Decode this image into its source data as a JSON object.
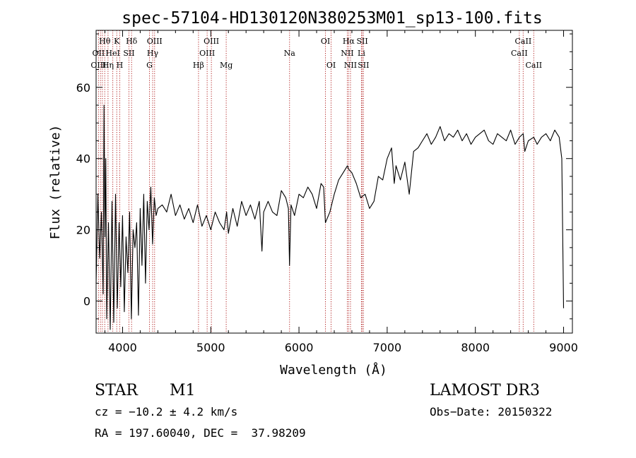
{
  "chart_data": {
    "type": "line",
    "title": "spec-57104-HD130120N380253M01_sp13-100.fits",
    "xlabel": "Wavelength (Å)",
    "ylabel": "Flux (relative)",
    "xlim": [
      3700,
      9100
    ],
    "ylim": [
      -9,
      76
    ],
    "xticks": [
      4000,
      5000,
      6000,
      7000,
      8000,
      9000
    ],
    "yticks": [
      0,
      20,
      40,
      60
    ],
    "series": [
      {
        "name": "flux",
        "x": [
          3700,
          3720,
          3740,
          3760,
          3780,
          3790,
          3800,
          3810,
          3820,
          3840,
          3860,
          3880,
          3900,
          3920,
          3940,
          3960,
          3980,
          4000,
          4020,
          4040,
          4060,
          4080,
          4100,
          4120,
          4140,
          4160,
          4180,
          4200,
          4220,
          4240,
          4260,
          4280,
          4300,
          4320,
          4340,
          4360,
          4380,
          4400,
          4450,
          4500,
          4550,
          4600,
          4650,
          4700,
          4750,
          4800,
          4850,
          4900,
          4950,
          5000,
          5050,
          5100,
          5150,
          5180,
          5200,
          5250,
          5300,
          5350,
          5400,
          5450,
          5500,
          5550,
          5580,
          5600,
          5650,
          5700,
          5750,
          5800,
          5850,
          5880,
          5893,
          5910,
          5950,
          6000,
          6050,
          6100,
          6150,
          6200,
          6250,
          6280,
          6300,
          6350,
          6400,
          6450,
          6500,
          6550,
          6563,
          6600,
          6650,
          6700,
          6750,
          6800,
          6850,
          6900,
          6950,
          7000,
          7050,
          7080,
          7100,
          7150,
          7200,
          7250,
          7300,
          7350,
          7400,
          7450,
          7500,
          7550,
          7600,
          7650,
          7700,
          7750,
          7800,
          7850,
          7900,
          7950,
          8000,
          8050,
          8100,
          8150,
          8200,
          8250,
          8300,
          8350,
          8400,
          8450,
          8500,
          8542,
          8560,
          8600,
          8662,
          8700,
          8750,
          8800,
          8850,
          8900,
          8950,
          8980,
          9000
        ],
        "values": [
          5,
          30,
          12,
          25,
          2,
          55,
          18,
          40,
          -5,
          22,
          -8,
          28,
          -6,
          30,
          -2,
          22,
          4,
          24,
          -3,
          18,
          8,
          25,
          -5,
          20,
          15,
          22,
          -4,
          26,
          10,
          30,
          5,
          28,
          20,
          32,
          16,
          29,
          24,
          26,
          27,
          25,
          30,
          24,
          27,
          23,
          26,
          22,
          27,
          21,
          24,
          20,
          25,
          22,
          20,
          25,
          19,
          26,
          21,
          28,
          24,
          27,
          23,
          28,
          14,
          25,
          28,
          25,
          24,
          31,
          29,
          26,
          10,
          27,
          24,
          30,
          29,
          32,
          30,
          26,
          33,
          32,
          22,
          25,
          30,
          34,
          36,
          38,
          37,
          36,
          33,
          29,
          30,
          26,
          28,
          35,
          34,
          40,
          43,
          33,
          38,
          34,
          39,
          30,
          42,
          43,
          45,
          47,
          44,
          46,
          49,
          45,
          47,
          46,
          48,
          45,
          47,
          44,
          46,
          47,
          48,
          45,
          44,
          47,
          46,
          45,
          48,
          44,
          46,
          47,
          42,
          45,
          46,
          44,
          46,
          47,
          45,
          48,
          46,
          40,
          -2
        ]
      }
    ],
    "line_labels": [
      {
        "label": "Hθ",
        "x": 3798,
        "row": 1
      },
      {
        "label": "OII",
        "x": 3727,
        "row": 2
      },
      {
        "label": "OIII",
        "x": 3727,
        "row": 3
      },
      {
        "label": "K",
        "x": 3934,
        "row": 1
      },
      {
        "label": "HeI",
        "x": 3889,
        "row": 2
      },
      {
        "label": "Hη",
        "x": 3835,
        "row": 3
      },
      {
        "label": "H",
        "x": 3968,
        "row": 3
      },
      {
        "label": "SII",
        "x": 4072,
        "row": 2
      },
      {
        "label": "Hδ",
        "x": 4102,
        "row": 1
      },
      {
        "label": "OIII",
        "x": 4363,
        "row": 1
      },
      {
        "label": "Hγ",
        "x": 4341,
        "row": 2
      },
      {
        "label": "G",
        "x": 4305,
        "row": 3
      },
      {
        "label": "Hβ",
        "x": 4861,
        "row": 3
      },
      {
        "label": "OIII",
        "x": 5007,
        "row": 1
      },
      {
        "label": "OIII",
        "x": 4959,
        "row": 2
      },
      {
        "label": "Mg",
        "x": 5175,
        "row": 3
      },
      {
        "label": "Na",
        "x": 5893,
        "row": 2
      },
      {
        "label": "OI",
        "x": 6300,
        "row": 1
      },
      {
        "label": "OI",
        "x": 6364,
        "row": 3
      },
      {
        "label": "Hα",
        "x": 6563,
        "row": 1
      },
      {
        "label": "SII",
        "x": 6717,
        "row": 1
      },
      {
        "label": "NII",
        "x": 6548,
        "row": 2
      },
      {
        "label": "Li",
        "x": 6708,
        "row": 2
      },
      {
        "label": "NII",
        "x": 6584,
        "row": 3
      },
      {
        "label": "SII",
        "x": 6731,
        "row": 3
      },
      {
        "label": "CaII",
        "x": 8542,
        "row": 1
      },
      {
        "label": "CaII",
        "x": 8498,
        "row": 2
      },
      {
        "label": "CaII",
        "x": 8662,
        "row": 3
      }
    ],
    "line_positions": [
      3727,
      3750,
      3771,
      3798,
      3835,
      3889,
      3934,
      3968,
      4072,
      4102,
      4305,
      4341,
      4363,
      4861,
      4959,
      5007,
      5175,
      5893,
      6300,
      6364,
      6548,
      6563,
      6584,
      6708,
      6717,
      6731,
      8498,
      8542,
      8662
    ],
    "colors": {
      "axis": "#000000",
      "spectrum": "#000000",
      "line_marker": "#b22222"
    }
  },
  "info": {
    "class": "STAR",
    "subclass": "M1",
    "survey": "LAMOST DR3",
    "cz": "cz = −10.2 ± 4.2 km/s",
    "obs_date": "Obs−Date: 20150322",
    "radec": "RA = 197.60040, DEC =  37.98209"
  }
}
